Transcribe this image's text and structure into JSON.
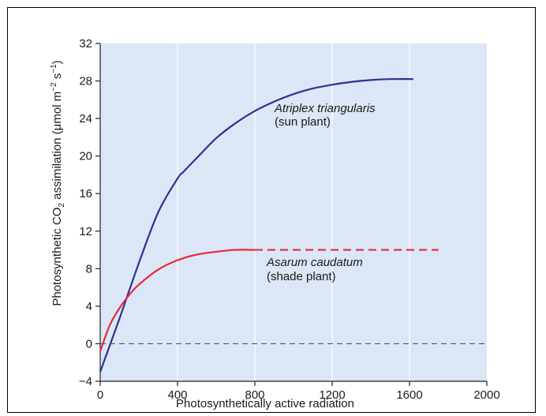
{
  "chart_data": {
    "type": "line",
    "xlabel": "Photosynthetically active radiation",
    "ylabel_parts": {
      "pre": "Photosynthetic CO",
      "sub2": "2",
      "mid": " assimilation (μmol m",
      "sup1": "−2",
      "mid2": " s",
      "sup2": "−1",
      "post": ")"
    },
    "xlim": [
      0,
      2000
    ],
    "ylim": [
      -4,
      32
    ],
    "x_ticks": [
      0,
      400,
      800,
      1200,
      1600,
      2000
    ],
    "y_ticks": [
      -4,
      0,
      4,
      8,
      12,
      16,
      20,
      24,
      28,
      32
    ],
    "x_tick_labels": [
      "0",
      "400",
      "800",
      "1200",
      "1600",
      "2000"
    ],
    "y_tick_labels": [
      "−4",
      "0",
      "4",
      "8",
      "12",
      "16",
      "20",
      "24",
      "28",
      "32"
    ],
    "zero_line": "dashed",
    "series": [
      {
        "name": "Atriplex triangularis",
        "note": "(sun plant)",
        "color": "#2e3192",
        "style": "solid",
        "x": [
          0,
          100,
          200,
          300,
          400,
          430,
          500,
          600,
          700,
          800,
          900,
          1000,
          1100,
          1200,
          1300,
          1400,
          1500,
          1620
        ],
        "y": [
          -3.0,
          2.7,
          8.6,
          14.0,
          17.6,
          18.3,
          19.8,
          21.9,
          23.5,
          24.8,
          25.8,
          26.6,
          27.2,
          27.6,
          27.9,
          28.1,
          28.2,
          28.2
        ]
      },
      {
        "name": "Asarum caudatum",
        "note": "(shade plant)",
        "color": "#e8283c",
        "style": "solid then dashed",
        "x": [
          0,
          50,
          100,
          150,
          200,
          300,
          400,
          500,
          600,
          700,
          800
        ],
        "y": [
          -0.8,
          2.0,
          3.8,
          5.2,
          6.3,
          7.9,
          8.9,
          9.5,
          9.8,
          10.0,
          10.0
        ],
        "dashed_x": [
          800,
          1750
        ],
        "dashed_y": [
          10.0,
          10.0
        ]
      }
    ]
  }
}
